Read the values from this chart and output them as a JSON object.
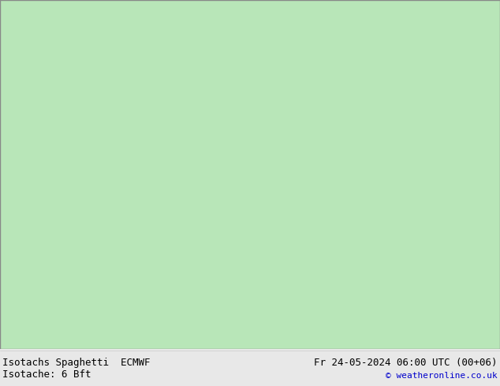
{
  "title_left": "Isotachs Spaghetti  ECMWF",
  "title_right": "Fr 24-05-2024 06:00 UTC (00+06)",
  "subtitle_left": "Isotache: 6 Bft",
  "subtitle_right": "© weatheronline.co.uk",
  "bg_color": "#e8e8e8",
  "land_color": "#b8e6b8",
  "ocean_color": "#e8e8e8",
  "text_color_black": "#000000",
  "text_color_blue": "#0000cc",
  "figsize": [
    6.34,
    4.9
  ],
  "dpi": 100,
  "font_size_title": 9,
  "font_size_copy": 8,
  "footer_bg": "#ffffff",
  "map_extent_lon": [
    -175,
    -45
  ],
  "map_extent_lat": [
    12,
    87
  ],
  "border_color": "#888888",
  "state_border_color": "#aaaaaa",
  "coastline_color": "#888888"
}
